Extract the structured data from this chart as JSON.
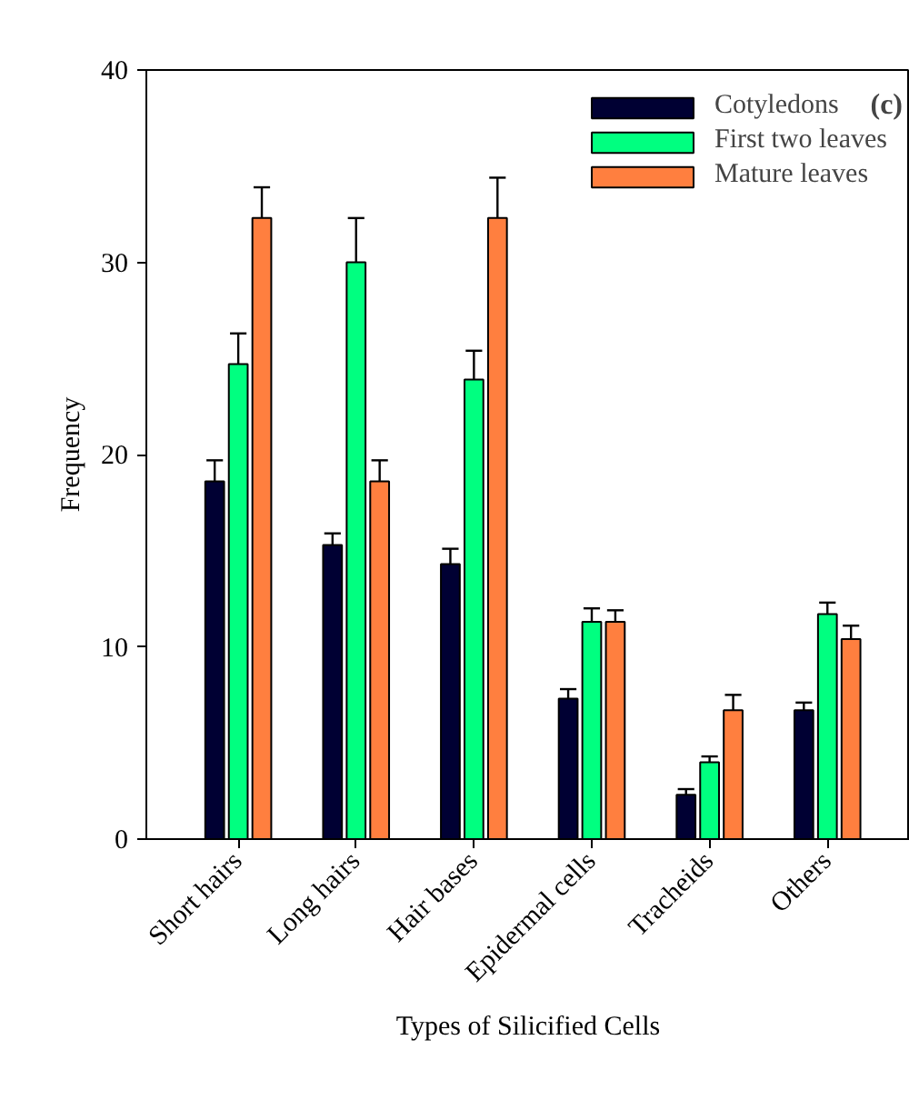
{
  "chart_data": {
    "type": "bar",
    "xlabel": "Types of Silicified Cells",
    "ylabel": "Frequency",
    "annotations": [
      "(c)"
    ],
    "categories": [
      "Short hairs",
      "Long hairs",
      "Hair bases",
      "Epidermal cells",
      "Tracheids",
      "Others"
    ],
    "series": [
      {
        "name": "Cotyledons",
        "color": "#000033",
        "values": [
          18.6,
          15.3,
          14.3,
          7.3,
          2.3,
          6.7
        ],
        "errors": [
          [
            18.6,
            19.7
          ],
          [
            15.3,
            15.9
          ],
          [
            14.3,
            15.1
          ],
          [
            7.3,
            7.8
          ],
          [
            2.3,
            2.6
          ],
          [
            6.7,
            7.1
          ]
        ]
      },
      {
        "name": "First two leaves",
        "color": "#00ff80",
        "values": [
          24.7,
          30.0,
          23.9,
          11.3,
          4.0,
          11.7
        ],
        "errors": [
          [
            24.7,
            26.3
          ],
          [
            30.0,
            32.3
          ],
          [
            23.9,
            25.4
          ],
          [
            11.3,
            12.0
          ],
          [
            4.0,
            4.3
          ],
          [
            11.7,
            12.3
          ]
        ]
      },
      {
        "name": "Mature leaves",
        "color": "#ff7f3f",
        "values": [
          32.3,
          18.6,
          32.3,
          11.3,
          6.7,
          10.4
        ],
        "errors": [
          [
            32.3,
            33.9
          ],
          [
            18.6,
            19.7
          ],
          [
            32.3,
            34.4
          ],
          [
            11.3,
            11.9
          ],
          [
            6.7,
            7.5
          ],
          [
            10.4,
            11.1
          ]
        ]
      }
    ],
    "ylim": [
      0,
      40
    ],
    "yticks": [
      0,
      10,
      20,
      30,
      40
    ],
    "grid": false,
    "legend": "top right"
  }
}
